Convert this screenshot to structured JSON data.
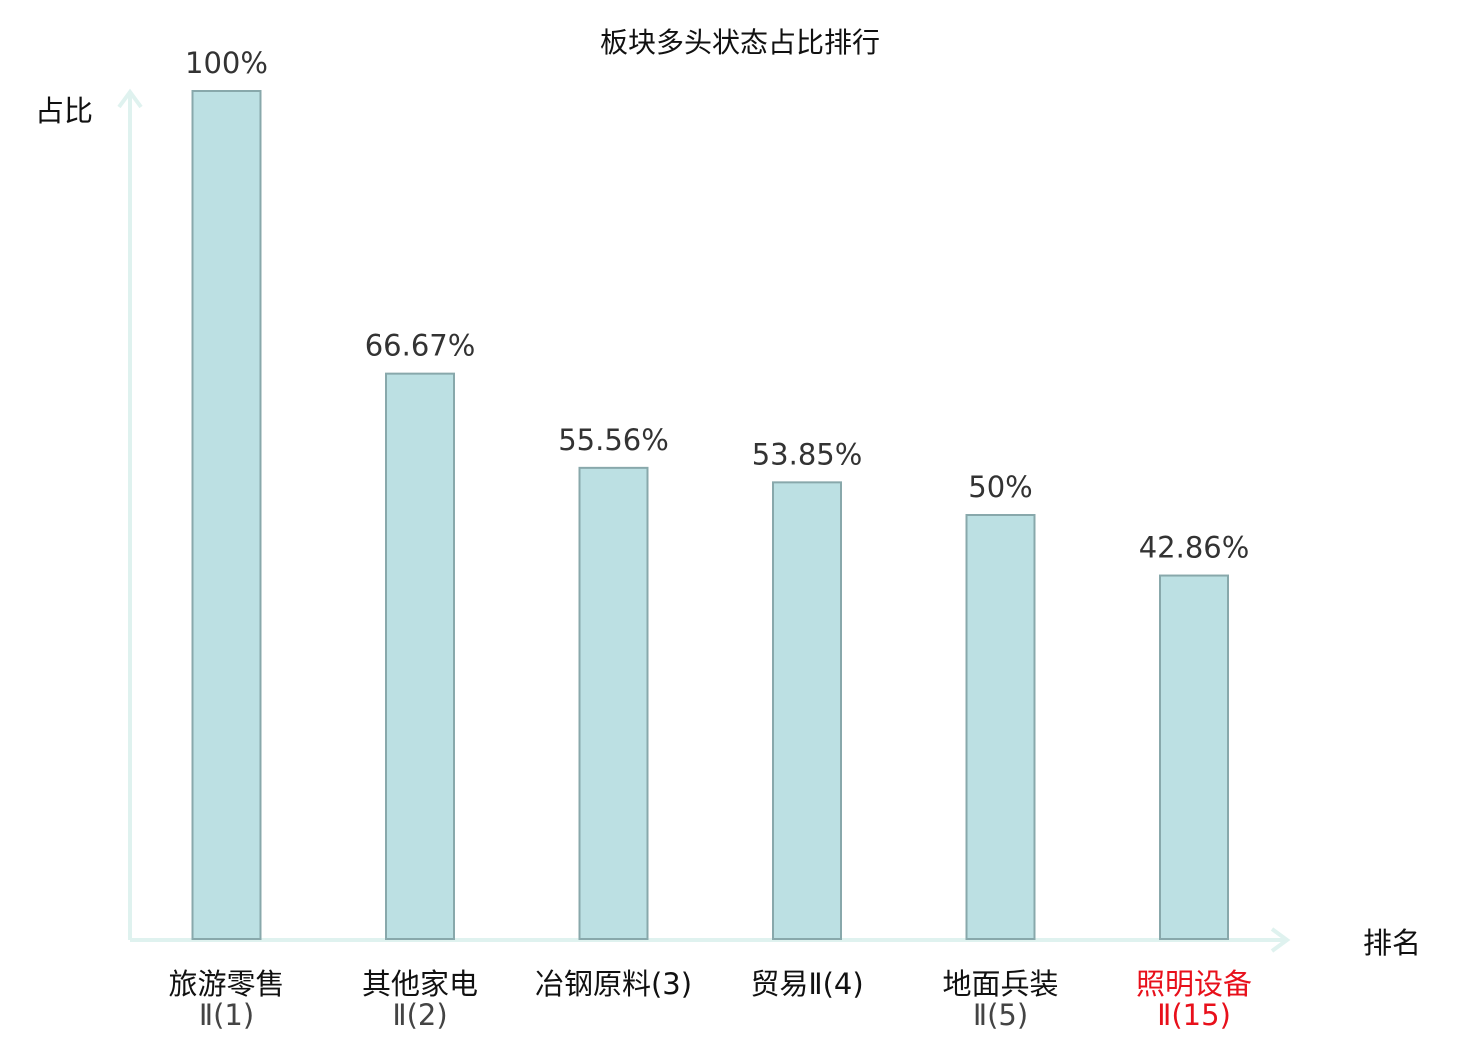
{
  "chart_data": {
    "type": "bar",
    "title": "板块多头状态占比排行",
    "ylabel": "占比",
    "xlabel": "排名",
    "ylim": [
      0,
      100
    ],
    "grid": false,
    "legend": "none",
    "categories": [
      {
        "name": "旅游零售",
        "rank": "Ⅱ(1)",
        "highlight": false
      },
      {
        "name": "其他家电",
        "rank": "Ⅱ(2)",
        "highlight": false
      },
      {
        "name": "冶钢原料(3)",
        "rank": "",
        "highlight": false
      },
      {
        "name": "贸易Ⅱ(4)",
        "rank": "",
        "highlight": false
      },
      {
        "name": "地面兵装",
        "rank": "Ⅱ(5)",
        "highlight": false
      },
      {
        "name": "照明设备",
        "rank": "Ⅱ(15)",
        "highlight": true
      }
    ],
    "values": [
      100,
      66.67,
      55.56,
      53.85,
      50,
      42.86
    ],
    "value_labels": [
      "100%",
      "66.67%",
      "55.56%",
      "53.85%",
      "50%",
      "42.86%"
    ],
    "colors": {
      "bar_fill": "#bce0e3",
      "bar_stroke": "#88a8ab",
      "axis": "#dff2ef",
      "label": "#111111",
      "value_label": "#333333",
      "rank_label": "#444444",
      "highlight": "#e8101b"
    }
  }
}
